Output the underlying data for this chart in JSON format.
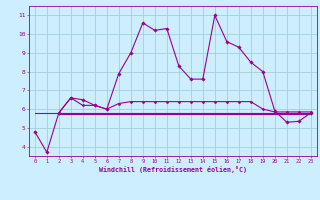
{
  "xlabel": "Windchill (Refroidissement éolien,°C)",
  "background_color": "#cceeff",
  "grid_color": "#99cccc",
  "line_color": "#990099",
  "xlim": [
    -0.5,
    23.5
  ],
  "ylim": [
    3.5,
    11.5
  ],
  "yticks": [
    4,
    5,
    6,
    7,
    8,
    9,
    10,
    11
  ],
  "xticks": [
    0,
    1,
    2,
    3,
    4,
    5,
    6,
    7,
    8,
    9,
    10,
    11,
    12,
    13,
    14,
    15,
    16,
    17,
    18,
    19,
    20,
    21,
    22,
    23
  ],
  "series1_x": [
    0,
    1,
    2,
    3,
    4,
    5,
    6,
    7,
    8,
    9,
    10,
    11,
    12,
    13,
    14,
    15,
    16,
    17,
    18,
    19,
    20,
    21,
    22,
    23
  ],
  "series1_y": [
    4.8,
    3.7,
    5.8,
    6.6,
    6.5,
    6.2,
    6.0,
    7.9,
    9.0,
    10.6,
    10.2,
    10.3,
    8.3,
    7.6,
    7.6,
    11.0,
    9.6,
    9.3,
    8.5,
    8.0,
    5.9,
    5.3,
    5.35,
    5.8
  ],
  "series2_x": [
    0,
    23
  ],
  "series2_y": [
    5.8,
    5.8
  ],
  "series3_x": [
    2,
    3,
    4,
    5,
    6,
    7,
    8,
    9,
    10,
    11,
    12,
    13,
    14,
    15,
    16,
    17,
    18,
    19,
    20,
    21,
    22,
    23
  ],
  "series3_y": [
    5.8,
    6.6,
    6.2,
    6.2,
    6.0,
    6.3,
    6.4,
    6.4,
    6.4,
    6.4,
    6.4,
    6.4,
    6.4,
    6.4,
    6.4,
    6.4,
    6.4,
    6.0,
    5.85,
    5.85,
    5.85,
    5.85
  ],
  "series4_x": [
    2,
    23
  ],
  "series4_y": [
    5.75,
    5.75
  ]
}
